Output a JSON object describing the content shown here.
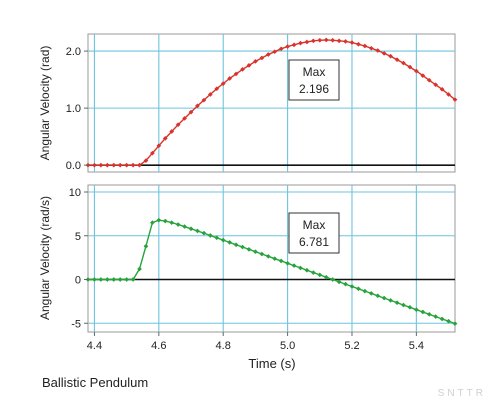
{
  "caption": "Ballistic Pendulum",
  "watermark": "SNTTR",
  "chart_data": [
    {
      "type": "line",
      "ylabel": "Angular Velocity (rad)",
      "xlim": [
        4.38,
        5.52
      ],
      "ylim": [
        -0.12,
        2.3
      ],
      "yticks": [
        "2.0",
        "1.0",
        "0.0"
      ],
      "ytick_values": [
        2.0,
        1.0,
        0.0
      ],
      "grid": true,
      "zero_line": true,
      "series": [
        {
          "color": "#d9332b",
          "x": [
            4.38,
            4.4,
            4.42,
            4.44,
            4.46,
            4.48,
            4.5,
            4.52,
            4.54,
            4.56,
            4.58,
            4.6,
            4.62,
            4.64,
            4.66,
            4.68,
            4.7,
            4.72,
            4.74,
            4.76,
            4.78,
            4.8,
            4.82,
            4.84,
            4.86,
            4.88,
            4.9,
            4.92,
            4.94,
            4.96,
            4.98,
            5.0,
            5.02,
            5.04,
            5.06,
            5.08,
            5.1,
            5.12,
            5.14,
            5.16,
            5.18,
            5.2,
            5.22,
            5.24,
            5.26,
            5.28,
            5.3,
            5.32,
            5.34,
            5.36,
            5.38,
            5.4,
            5.42,
            5.44,
            5.46,
            5.48,
            5.5,
            5.52
          ],
          "y": [
            0.0,
            0.0,
            0.0,
            0.0,
            0.0,
            0.0,
            0.0,
            0.0,
            0.0,
            0.08,
            0.21,
            0.34,
            0.47,
            0.59,
            0.71,
            0.82,
            0.93,
            1.04,
            1.14,
            1.24,
            1.34,
            1.43,
            1.52,
            1.6,
            1.68,
            1.75,
            1.82,
            1.88,
            1.94,
            1.99,
            2.04,
            2.08,
            2.11,
            2.14,
            2.16,
            2.18,
            2.19,
            2.196,
            2.19,
            2.18,
            2.17,
            2.15,
            2.12,
            2.09,
            2.05,
            2.01,
            1.96,
            1.91,
            1.85,
            1.79,
            1.72,
            1.65,
            1.57,
            1.49,
            1.41,
            1.33,
            1.24,
            1.15
          ]
        }
      ],
      "annotation": {
        "label": "Max",
        "value": "2.196"
      }
    },
    {
      "type": "line",
      "ylabel": "Angular Velocity (rad/s)",
      "xlabel": "Time (s)",
      "xlim": [
        4.38,
        5.52
      ],
      "ylim": [
        -6,
        10.8
      ],
      "xticks": [
        "4.4",
        "4.6",
        "4.8",
        "5.0",
        "5.2",
        "5.4"
      ],
      "xtick_values": [
        4.4,
        4.6,
        4.8,
        5.0,
        5.2,
        5.4
      ],
      "yticks": [
        "10",
        "5",
        "0",
        "-5"
      ],
      "ytick_values": [
        10,
        5,
        0,
        -5
      ],
      "grid": true,
      "zero_line": true,
      "series": [
        {
          "color": "#27a33b",
          "x": [
            4.38,
            4.4,
            4.42,
            4.44,
            4.46,
            4.48,
            4.5,
            4.52,
            4.54,
            4.56,
            4.58,
            4.6,
            4.62,
            4.64,
            4.66,
            4.68,
            4.7,
            4.72,
            4.74,
            4.76,
            4.78,
            4.8,
            4.82,
            4.84,
            4.86,
            4.88,
            4.9,
            4.92,
            4.94,
            4.96,
            4.98,
            5.0,
            5.02,
            5.04,
            5.06,
            5.08,
            5.1,
            5.12,
            5.14,
            5.16,
            5.18,
            5.2,
            5.22,
            5.24,
            5.26,
            5.28,
            5.3,
            5.32,
            5.34,
            5.36,
            5.38,
            5.4,
            5.42,
            5.44,
            5.46,
            5.48,
            5.5,
            5.52
          ],
          "y": [
            0.0,
            0.0,
            0.0,
            0.0,
            0.0,
            0.0,
            0.0,
            0.0,
            1.2,
            3.8,
            6.5,
            6.78,
            6.68,
            6.5,
            6.28,
            6.05,
            5.8,
            5.55,
            5.3,
            5.03,
            4.77,
            4.5,
            4.24,
            3.97,
            3.71,
            3.44,
            3.18,
            2.91,
            2.65,
            2.38,
            2.12,
            1.85,
            1.59,
            1.32,
            1.06,
            0.79,
            0.53,
            0.26,
            0.0,
            -0.27,
            -0.53,
            -0.8,
            -1.06,
            -1.33,
            -1.59,
            -1.86,
            -2.12,
            -2.39,
            -2.65,
            -2.92,
            -3.18,
            -3.45,
            -3.71,
            -3.98,
            -4.24,
            -4.51,
            -4.77,
            -5.04
          ]
        }
      ],
      "annotation": {
        "label": "Max",
        "value": "6.781"
      }
    }
  ]
}
